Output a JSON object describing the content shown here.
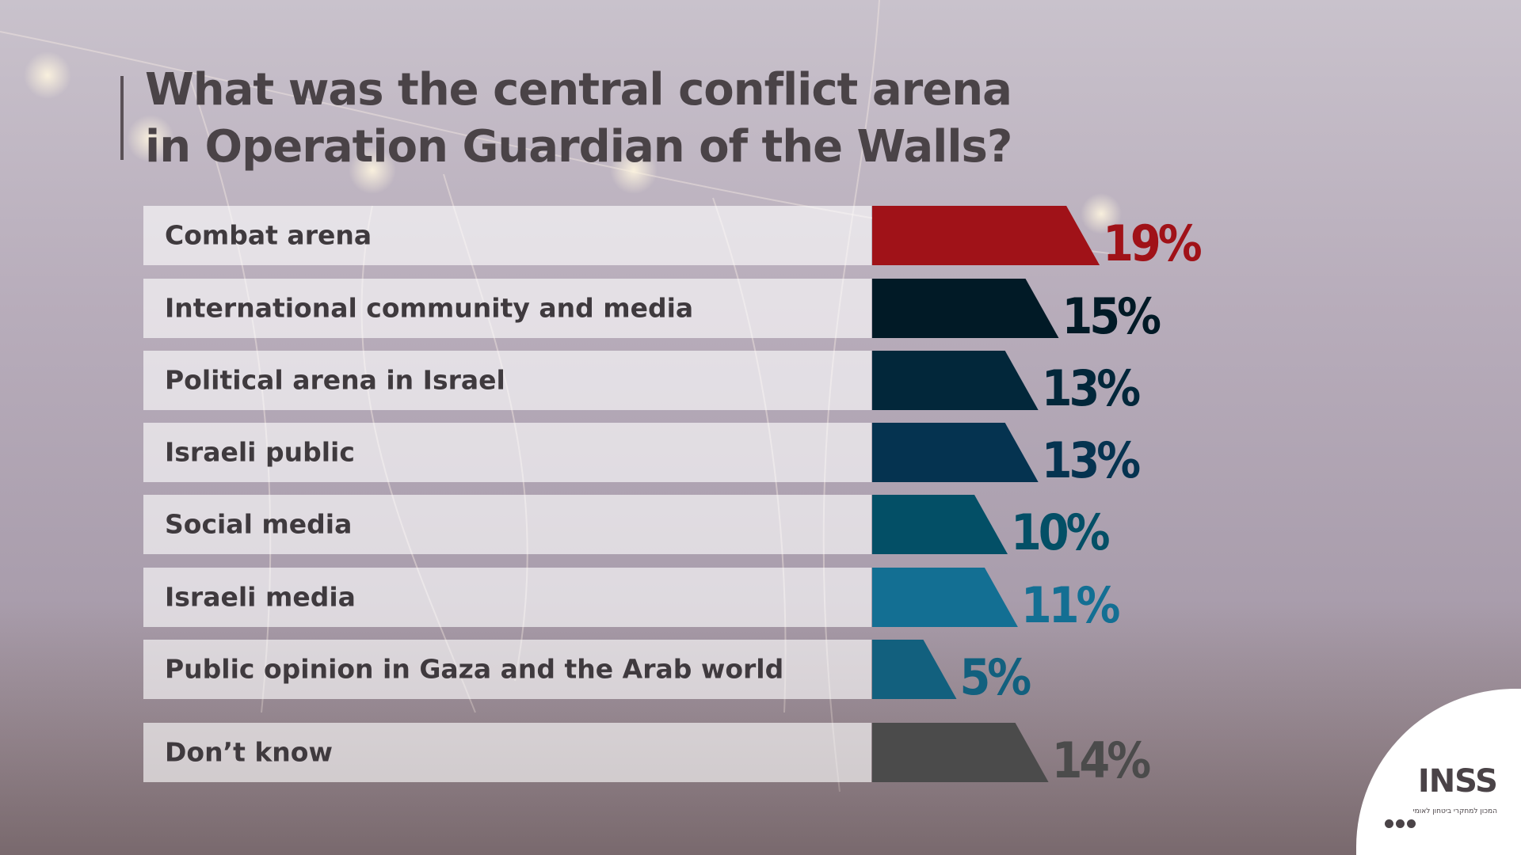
{
  "title": {
    "line1": "What was the central conflict arena",
    "line2": "in Operation Guardian of the Walls?"
  },
  "chart_data": {
    "type": "bar",
    "orientation": "horizontal",
    "categories": [
      "Combat arena",
      "International community and media",
      "Political arena in Israel",
      "Israeli public",
      "Social media",
      "Israeli media",
      "Public opinion in Gaza and the Arab world",
      "Don’t know"
    ],
    "values": [
      19,
      15,
      13,
      13,
      10,
      11,
      5,
      14
    ],
    "value_labels": [
      "19%",
      "15%",
      "13%",
      "13%",
      "10%",
      "11%",
      "5%",
      "14%"
    ],
    "colors": [
      "#a01218",
      "#011a26",
      "#02273a",
      "#053350",
      "#034f66",
      "#136f93",
      "#12607e",
      "#4b4b4b"
    ],
    "grid": false,
    "legend": "none"
  },
  "logo": {
    "text": "INSS",
    "subtitle": "המכון למחקרי ביטחון לאומי"
  }
}
